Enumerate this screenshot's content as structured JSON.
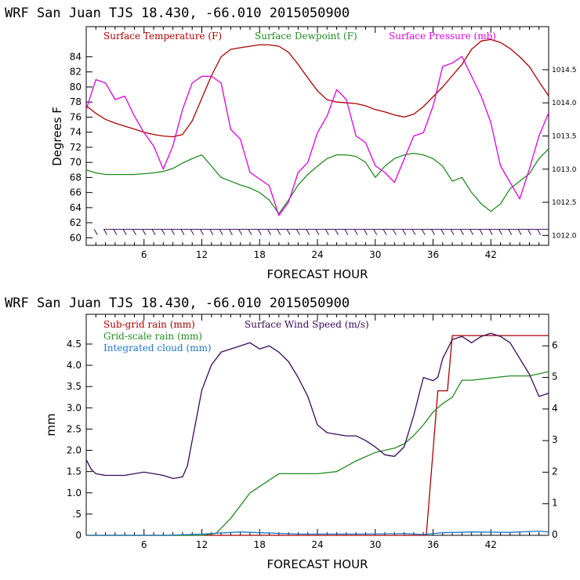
{
  "chart_data": [
    {
      "type": "line",
      "title": "WRF   San Juan TJS  18.430, -66.010  2015050900",
      "xlabel": "FORECAST HOUR",
      "ylabel": "Degrees F",
      "xlim": [
        0,
        48
      ],
      "ylim": [
        59,
        88
      ],
      "y2lim": [
        1011.85,
        1015.15
      ],
      "xticks": [
        6,
        12,
        18,
        24,
        30,
        36,
        42
      ],
      "yticks": [
        60,
        62,
        64,
        66,
        68,
        70,
        72,
        74,
        76,
        78,
        80,
        82,
        84
      ],
      "y2ticks": [
        1012.0,
        1012.5,
        1013.0,
        1013.5,
        1014.0,
        1014.5
      ],
      "y2tick_labels": [
        "1012.0",
        "1012.5",
        "1013.0",
        "1013.5",
        "1014.0",
        "1014.5"
      ],
      "series": [
        {
          "name": "Surface Temperature (F)",
          "color": "#aa0000",
          "axis": "left",
          "x": [
            0,
            1,
            2,
            3,
            4,
            5,
            6,
            7,
            8,
            9,
            10,
            11,
            12,
            13,
            14,
            15,
            16,
            17,
            18,
            19,
            20,
            21,
            22,
            23,
            24,
            25,
            26,
            27,
            28,
            29,
            30,
            31,
            32,
            33,
            34,
            35,
            36,
            37,
            38,
            39,
            40,
            41,
            42,
            43,
            44,
            45,
            46,
            47,
            48
          ],
          "y": [
            77.5,
            76.5,
            75.7,
            75.2,
            74.8,
            74.4,
            74.0,
            73.7,
            73.5,
            73.4,
            73.7,
            75.5,
            78.5,
            81.5,
            84.0,
            85.0,
            85.2,
            85.4,
            85.6,
            85.6,
            85.4,
            84.6,
            83.0,
            81.2,
            79.5,
            78.3,
            78.0,
            77.9,
            77.8,
            77.5,
            77.0,
            76.7,
            76.3,
            76.0,
            76.4,
            77.4,
            78.7,
            80.0,
            81.5,
            83.0,
            85.0,
            86.1,
            86.3,
            85.9,
            85.1,
            84.0,
            82.7,
            80.7,
            78.8
          ]
        },
        {
          "name": "Surface Dewpoint (F)",
          "color": "#228b22",
          "axis": "left",
          "x": [
            0,
            1,
            2,
            3,
            4,
            5,
            6,
            7,
            8,
            9,
            10,
            11,
            12,
            13,
            14,
            15,
            16,
            17,
            18,
            19,
            20,
            21,
            22,
            23,
            24,
            25,
            26,
            27,
            28,
            29,
            30,
            31,
            32,
            33,
            34,
            35,
            36,
            37,
            38,
            39,
            40,
            41,
            42,
            43,
            44,
            45,
            46,
            47,
            48
          ],
          "y": [
            69.0,
            68.6,
            68.4,
            68.4,
            68.4,
            68.4,
            68.5,
            68.6,
            68.8,
            69.2,
            69.9,
            70.5,
            71.0,
            69.5,
            68.0,
            67.5,
            67.0,
            66.6,
            66.0,
            65.0,
            63.2,
            65.0,
            67.0,
            68.4,
            69.5,
            70.5,
            71.0,
            71.0,
            70.8,
            70.0,
            68.0,
            69.5,
            70.5,
            71.0,
            71.2,
            71.0,
            70.5,
            69.5,
            67.5,
            68.0,
            66.0,
            64.5,
            63.5,
            64.5,
            66.5,
            67.5,
            68.5,
            70.5,
            71.8
          ]
        },
        {
          "name": "Surface Pressure (mb)",
          "color": "#dd00dd",
          "axis": "right",
          "x": [
            0,
            1,
            2,
            3,
            4,
            5,
            6,
            7,
            8,
            9,
            10,
            11,
            12,
            13,
            14,
            15,
            16,
            17,
            18,
            19,
            20,
            21,
            22,
            23,
            24,
            25,
            26,
            27,
            28,
            29,
            30,
            31,
            32,
            33,
            34,
            35,
            36,
            37,
            38,
            39,
            40,
            41,
            42,
            43,
            44,
            45,
            46,
            47,
            48
          ],
          "y": [
            1013.9,
            1014.35,
            1014.3,
            1014.05,
            1014.1,
            1013.8,
            1013.55,
            1013.35,
            1013.0,
            1013.35,
            1013.9,
            1014.3,
            1014.4,
            1014.4,
            1014.3,
            1013.6,
            1013.45,
            1012.95,
            1012.85,
            1012.75,
            1012.3,
            1012.5,
            1012.95,
            1013.1,
            1013.55,
            1013.8,
            1014.2,
            1014.05,
            1013.5,
            1013.4,
            1013.05,
            1012.95,
            1012.8,
            1013.15,
            1013.5,
            1013.55,
            1013.95,
            1014.55,
            1014.6,
            1014.7,
            1014.4,
            1014.1,
            1013.7,
            1013.05,
            1012.8,
            1012.55,
            1013.0,
            1013.5,
            1013.85
          ]
        }
      ],
      "wind_barbs": true
    },
    {
      "type": "line",
      "title": "WRF   San Juan TJS  18.430, -66.010  2015050900",
      "xlabel": "FORECAST HOUR",
      "ylabel": "mm",
      "xlim": [
        0,
        48
      ],
      "ylim": [
        0,
        5.2
      ],
      "y2lim": [
        0,
        7.0
      ],
      "xticks": [
        6,
        12,
        18,
        24,
        30,
        36,
        42
      ],
      "yticks": [
        0,
        0.5,
        1.0,
        1.5,
        2.0,
        2.5,
        3.0,
        3.5,
        4.0,
        4.5
      ],
      "ytick_labels": [
        "0",
        ".5",
        "1.0",
        "1.5",
        "2.0",
        "2.5",
        "3.0",
        "3.5",
        "4.0",
        "4.5"
      ],
      "y2ticks": [
        0,
        1,
        2,
        3,
        4,
        5,
        6
      ],
      "y2tick_labels": [
        "0",
        "1",
        "2",
        "3",
        "4",
        "5",
        "6"
      ],
      "series": [
        {
          "name": "Sub-grid rain (mm)",
          "color": "#aa0000",
          "axis": "left",
          "x": [
            0,
            35.3,
            36.5,
            37.5,
            38.0,
            48
          ],
          "y": [
            0,
            0,
            3.4,
            3.4,
            4.7,
            4.7
          ]
        },
        {
          "name": "Grid-scale rain (mm)",
          "color": "#228b22",
          "axis": "left",
          "x": [
            0,
            12,
            13.5,
            15,
            17,
            20,
            24,
            26,
            28,
            30,
            32,
            33,
            34,
            35,
            36,
            37,
            38,
            39,
            40,
            42,
            44,
            46,
            47,
            48
          ],
          "y": [
            0,
            0,
            0.05,
            0.4,
            1.0,
            1.45,
            1.45,
            1.5,
            1.75,
            1.95,
            2.05,
            2.15,
            2.35,
            2.6,
            2.9,
            3.1,
            3.25,
            3.65,
            3.65,
            3.7,
            3.75,
            3.75,
            3.8,
            3.85
          ]
        },
        {
          "name": "Integrated cloud (mm)",
          "color": "#1e78c8",
          "axis": "left",
          "x": [
            0,
            8,
            12,
            16,
            18,
            22,
            28,
            33,
            35,
            37,
            40,
            44,
            47,
            48
          ],
          "y": [
            0,
            0,
            0.03,
            0.08,
            0.06,
            0.03,
            0.03,
            0.04,
            0.02,
            0.06,
            0.08,
            0.07,
            0.1,
            0.08
          ]
        },
        {
          "name": "Surface Wind Speed (m/s)",
          "color": "#3a0a5a",
          "axis": "right",
          "x": [
            0,
            0.5,
            1,
            2,
            3,
            4,
            5,
            6,
            7,
            8,
            9,
            10,
            10.5,
            11,
            11.5,
            12,
            13,
            14,
            15,
            16,
            17,
            18,
            19,
            20,
            21,
            22,
            23,
            24,
            25,
            26,
            27,
            28,
            29,
            30,
            31,
            32,
            33,
            34,
            35,
            36,
            36.5,
            37,
            38,
            39,
            40,
            41,
            42,
            43,
            44,
            45,
            46,
            47,
            48
          ],
          "y": [
            2.4,
            2.1,
            1.95,
            1.9,
            1.9,
            1.9,
            1.95,
            2.0,
            1.95,
            1.9,
            1.8,
            1.85,
            2.2,
            3.0,
            3.8,
            4.6,
            5.4,
            5.8,
            5.9,
            6.0,
            6.1,
            5.9,
            6.0,
            5.8,
            5.5,
            5.0,
            4.4,
            3.5,
            3.25,
            3.2,
            3.15,
            3.15,
            3.0,
            2.8,
            2.55,
            2.5,
            2.8,
            3.8,
            5.0,
            4.9,
            5.0,
            5.6,
            6.2,
            6.3,
            6.1,
            6.3,
            6.4,
            6.3,
            6.1,
            5.6,
            5.1,
            4.4,
            4.5
          ]
        }
      ]
    }
  ]
}
